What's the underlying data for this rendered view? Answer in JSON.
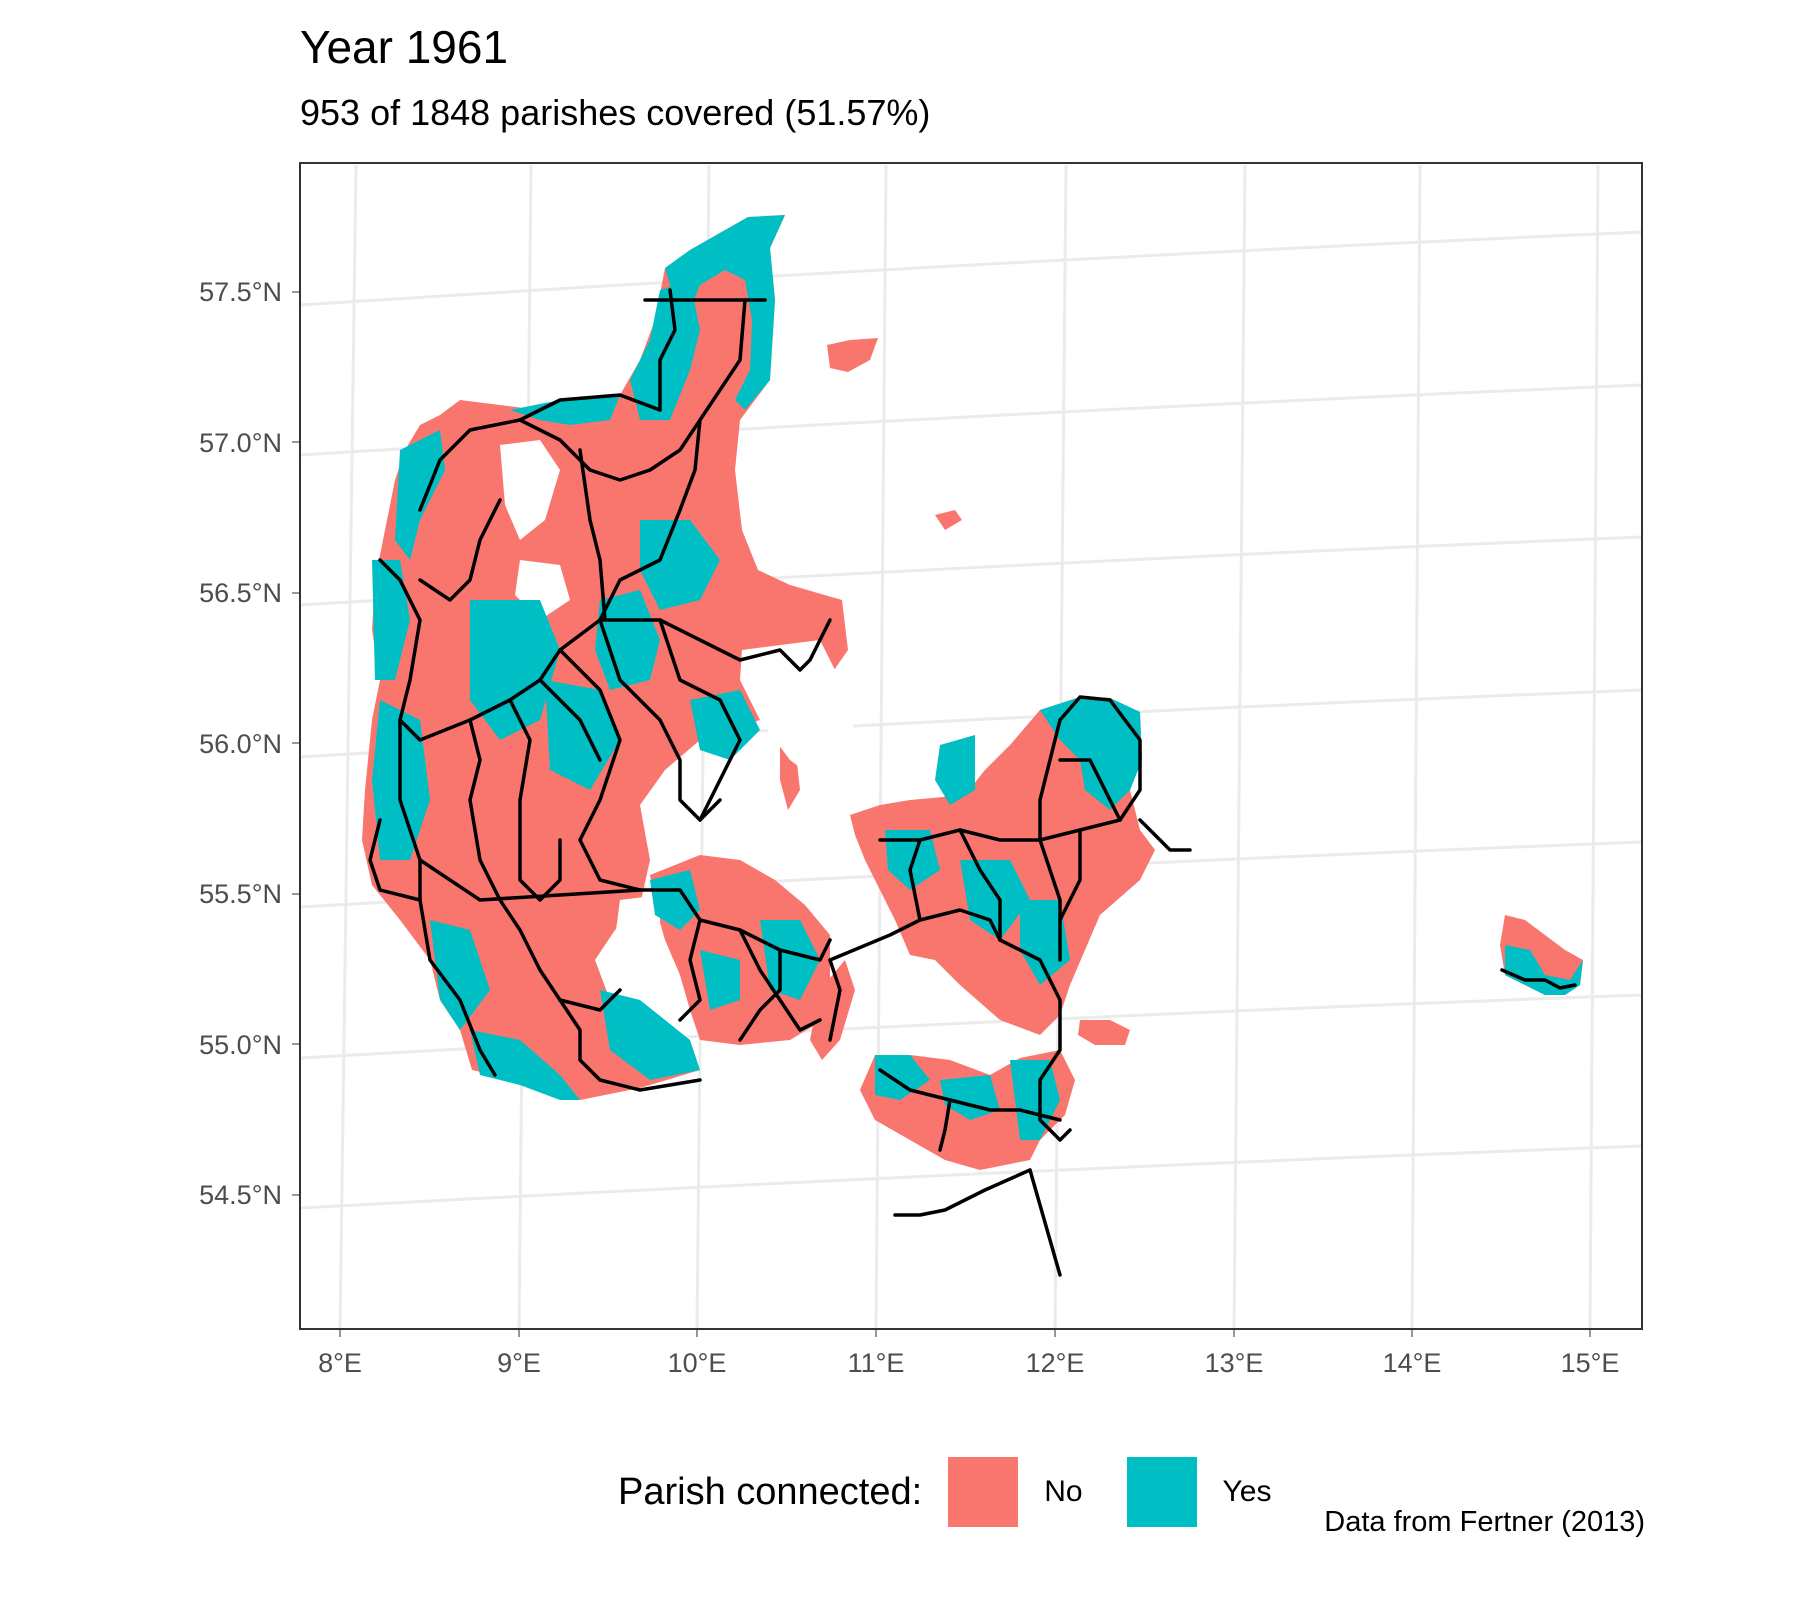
{
  "title": "Year 1961",
  "subtitle": "953 of 1848 parishes covered (51.57%)",
  "caption": "Data from Fertner (2013)",
  "legend": {
    "title": "Parish connected:",
    "items": [
      {
        "label": "No",
        "color": "#F8766D"
      },
      {
        "label": "Yes",
        "color": "#00BFC4"
      }
    ]
  },
  "axes": {
    "x_ticks": [
      "8°E",
      "9°E",
      "10°E",
      "11°E",
      "12°E",
      "13°E",
      "14°E",
      "15°E"
    ],
    "y_ticks": [
      "57.5°N",
      "57.0°N",
      "56.5°N",
      "56.0°N",
      "55.5°N",
      "55.0°N",
      "54.5°N"
    ]
  },
  "colors": {
    "panel_border": "#333333",
    "grid": "#ebebeb",
    "rail": "#000000"
  }
}
